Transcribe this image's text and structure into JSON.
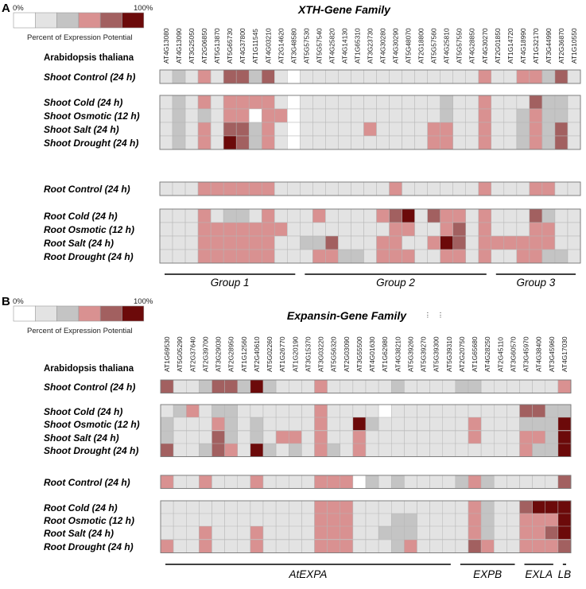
{
  "palette": [
    "#ffffff",
    "#e3e3e3",
    "#c4c4c4",
    "#d99191",
    "#a26060",
    "#6c0a0a"
  ],
  "legend": {
    "min_label": "0%",
    "max_label": "100%",
    "caption": "Percent of Expression Potential"
  },
  "chart_data": [
    {
      "type": "heatmap",
      "panel": "A",
      "title": "XTH-Gene Family",
      "species": "Arabidopsis thaliana",
      "value_scale": "0-5 (0=0%, 5=100% of expression potential)",
      "genes": [
        "AT4G13080",
        "AT4G13090",
        "AT3G25050",
        "AT2G06850",
        "AT5G13870",
        "AT5G65730",
        "AT4G37800",
        "AT1G11545",
        "AT4G03210",
        "AT2G14620",
        "AT3G48580",
        "AT5G57530",
        "AT5G57540",
        "AT4G25820",
        "AT4G14130",
        "AT1G65310",
        "AT3G23730",
        "AT4G30280",
        "AT4G30290",
        "AT5G48070",
        "AT2G18800",
        "AT5G57560",
        "AT4G25810",
        "AT5G57550",
        "AT4G28850",
        "AT4G30270",
        "AT2G01850",
        "AT1G14720",
        "AT4G18990",
        "AT1G32170",
        "AT3G44990",
        "AT2G36870",
        "AT1G10550"
      ],
      "rows": [
        {
          "label": "Shoot Control (24 h)",
          "values": [
            1,
            2,
            1,
            3,
            1,
            4,
            4,
            2,
            4,
            1,
            0,
            1,
            1,
            1,
            1,
            1,
            1,
            1,
            1,
            1,
            1,
            1,
            1,
            1,
            1,
            3,
            1,
            1,
            3,
            3,
            2,
            4,
            1
          ]
        },
        {
          "label": "Shoot Cold (24 h)",
          "values": [
            1,
            2,
            1,
            3,
            1,
            3,
            3,
            3,
            3,
            1,
            0,
            1,
            1,
            1,
            1,
            1,
            1,
            1,
            1,
            1,
            1,
            1,
            2,
            1,
            1,
            3,
            1,
            1,
            1,
            4,
            2,
            2,
            1
          ]
        },
        {
          "label": "Shoot Osmotic (12 h)",
          "values": [
            1,
            2,
            1,
            2,
            1,
            3,
            3,
            0,
            3,
            3,
            0,
            1,
            1,
            1,
            1,
            1,
            1,
            1,
            1,
            1,
            1,
            1,
            2,
            1,
            1,
            3,
            1,
            1,
            2,
            3,
            2,
            2,
            1
          ]
        },
        {
          "label": "Shoot Salt (24 h)",
          "values": [
            1,
            2,
            1,
            3,
            1,
            4,
            4,
            2,
            3,
            1,
            0,
            1,
            1,
            1,
            1,
            1,
            3,
            1,
            1,
            1,
            1,
            3,
            3,
            1,
            1,
            3,
            1,
            1,
            2,
            3,
            2,
            4,
            1
          ]
        },
        {
          "label": "Shoot Drought (24 h)",
          "values": [
            1,
            2,
            1,
            3,
            1,
            5,
            4,
            2,
            3,
            1,
            0,
            1,
            1,
            1,
            1,
            1,
            1,
            1,
            1,
            1,
            1,
            3,
            3,
            1,
            1,
            3,
            1,
            1,
            2,
            3,
            2,
            4,
            1
          ]
        },
        {
          "label": "Root Control (24 h)",
          "values": [
            1,
            1,
            1,
            3,
            3,
            3,
            3,
            3,
            3,
            1,
            1,
            1,
            1,
            1,
            1,
            1,
            1,
            1,
            3,
            1,
            1,
            1,
            1,
            1,
            1,
            3,
            1,
            1,
            1,
            3,
            3,
            1,
            1
          ]
        },
        {
          "label": "Root Cold (24 h)",
          "values": [
            1,
            1,
            1,
            3,
            1,
            2,
            2,
            1,
            3,
            1,
            1,
            1,
            3,
            1,
            1,
            1,
            1,
            3,
            4,
            5,
            1,
            4,
            3,
            3,
            1,
            3,
            1,
            1,
            1,
            4,
            2,
            1,
            1
          ]
        },
        {
          "label": "Root Osmotic (12 h)",
          "values": [
            1,
            1,
            1,
            3,
            3,
            3,
            3,
            3,
            3,
            3,
            1,
            1,
            1,
            1,
            1,
            1,
            1,
            1,
            3,
            3,
            1,
            1,
            3,
            4,
            1,
            3,
            1,
            1,
            1,
            3,
            3,
            1,
            1
          ]
        },
        {
          "label": "Root Salt (24 h)",
          "values": [
            1,
            1,
            1,
            3,
            3,
            3,
            3,
            3,
            3,
            1,
            1,
            2,
            2,
            4,
            1,
            1,
            1,
            3,
            3,
            1,
            1,
            3,
            5,
            4,
            1,
            3,
            3,
            3,
            3,
            3,
            3,
            1,
            1
          ]
        },
        {
          "label": "Root Drought (24 h)",
          "values": [
            1,
            1,
            1,
            3,
            3,
            3,
            3,
            3,
            3,
            1,
            1,
            1,
            3,
            3,
            2,
            2,
            1,
            3,
            3,
            3,
            1,
            1,
            3,
            3,
            1,
            3,
            1,
            1,
            3,
            3,
            2,
            2,
            1
          ]
        }
      ],
      "groups": [
        {
          "label": "Group 1",
          "from": 0,
          "to": 10
        },
        {
          "label": "Group 2",
          "from": 11,
          "to": 25
        },
        {
          "label": "Group 3",
          "from": 26,
          "to": 32
        }
      ]
    },
    {
      "type": "heatmap",
      "panel": "B",
      "title": "Expansin-Gene Family",
      "species": "Arabidopsis thaliana",
      "value_scale": "0-5 (0=0%, 5=100% of expression potential)",
      "genes": [
        "AT1G69530",
        "AT5G05290",
        "AT2G37640",
        "AT2G39700",
        "AT3G29030",
        "AT2G28950",
        "AT1G12560",
        "AT2G40610",
        "AT5G02260",
        "AT1G26770",
        "AT1G20190",
        "AT3G15370",
        "AT3G03220",
        "AT5G56320",
        "AT2G03090",
        "AT3G55500",
        "AT4G01630",
        "AT1G62980",
        "AT4G38210",
        "AT5G39260",
        "AT5G39270",
        "AT5G39300",
        "AT5G39310",
        "AT2G20750",
        "AT1G65680",
        "AT4G28250",
        "AT2G45110",
        "AT3G60570",
        "AT3G45970",
        "AT4G38400",
        "AT3G45960",
        "AT4G17030"
      ],
      "ellipsis_genes": [
        "AT5G39270",
        "AT5G39300"
      ],
      "rows": [
        {
          "label": "Shoot Control (24 h)",
          "values": [
            4,
            1,
            1,
            2,
            4,
            4,
            2,
            5,
            2,
            1,
            1,
            1,
            3,
            1,
            1,
            1,
            1,
            1,
            2,
            1,
            1,
            1,
            1,
            2,
            2,
            1,
            1,
            1,
            1,
            1,
            1,
            3
          ]
        },
        {
          "label": "Shoot Cold (24 h)",
          "values": [
            1,
            2,
            3,
            1,
            2,
            2,
            1,
            1,
            1,
            1,
            1,
            1,
            3,
            1,
            1,
            1,
            1,
            0,
            1,
            1,
            1,
            1,
            1,
            1,
            1,
            1,
            1,
            1,
            4,
            4,
            2,
            2
          ]
        },
        {
          "label": "Shoot Osmotic (12 h)",
          "values": [
            2,
            1,
            1,
            1,
            3,
            2,
            1,
            2,
            1,
            1,
            1,
            1,
            3,
            1,
            1,
            5,
            2,
            1,
            1,
            1,
            1,
            1,
            1,
            1,
            3,
            1,
            1,
            1,
            2,
            2,
            2,
            5
          ]
        },
        {
          "label": "Shoot Salt (24 h)",
          "values": [
            2,
            1,
            1,
            1,
            4,
            2,
            1,
            2,
            1,
            3,
            3,
            1,
            3,
            1,
            1,
            3,
            1,
            1,
            1,
            1,
            1,
            1,
            1,
            1,
            3,
            1,
            1,
            1,
            3,
            3,
            2,
            5
          ]
        },
        {
          "label": "Shoot Drought (24 h)",
          "values": [
            4,
            1,
            1,
            2,
            4,
            3,
            1,
            5,
            2,
            1,
            2,
            1,
            3,
            2,
            1,
            3,
            1,
            1,
            1,
            1,
            1,
            1,
            1,
            1,
            1,
            1,
            1,
            1,
            3,
            2,
            2,
            5
          ]
        },
        {
          "label": "Root Control (24 h)",
          "values": [
            3,
            1,
            1,
            3,
            1,
            1,
            1,
            3,
            1,
            1,
            1,
            1,
            3,
            3,
            3,
            0,
            2,
            1,
            2,
            1,
            1,
            1,
            1,
            2,
            3,
            2,
            1,
            1,
            1,
            1,
            1,
            4
          ]
        },
        {
          "label": "Root Cold (24 h)",
          "values": [
            1,
            1,
            1,
            1,
            1,
            1,
            1,
            1,
            1,
            1,
            1,
            1,
            3,
            3,
            3,
            1,
            1,
            1,
            1,
            1,
            1,
            1,
            1,
            1,
            3,
            2,
            1,
            1,
            4,
            5,
            5,
            5
          ]
        },
        {
          "label": "Root Osmotic (12 h)",
          "values": [
            1,
            1,
            1,
            1,
            1,
            1,
            1,
            1,
            1,
            1,
            1,
            1,
            3,
            3,
            3,
            1,
            1,
            1,
            2,
            2,
            1,
            1,
            1,
            1,
            3,
            2,
            1,
            1,
            3,
            3,
            3,
            5
          ]
        },
        {
          "label": "Root Salt (24 h)",
          "values": [
            1,
            1,
            1,
            3,
            1,
            1,
            1,
            3,
            1,
            1,
            1,
            1,
            3,
            3,
            3,
            1,
            1,
            2,
            2,
            2,
            1,
            1,
            1,
            1,
            3,
            2,
            1,
            1,
            3,
            3,
            4,
            5
          ]
        },
        {
          "label": "Root Drought (24 h)",
          "values": [
            3,
            1,
            1,
            3,
            1,
            1,
            1,
            3,
            1,
            1,
            1,
            1,
            3,
            3,
            3,
            1,
            1,
            1,
            2,
            3,
            1,
            1,
            1,
            1,
            4,
            3,
            1,
            1,
            3,
            3,
            3,
            4
          ]
        }
      ],
      "groups": [
        {
          "label": "AtEXPA",
          "from": 0,
          "to": 22
        },
        {
          "label": "EXPB",
          "from": 23,
          "to": 27
        },
        {
          "label": "EXLA",
          "from": 28,
          "to": 30
        },
        {
          "label": "LB",
          "from": 31,
          "to": 31
        }
      ]
    }
  ]
}
